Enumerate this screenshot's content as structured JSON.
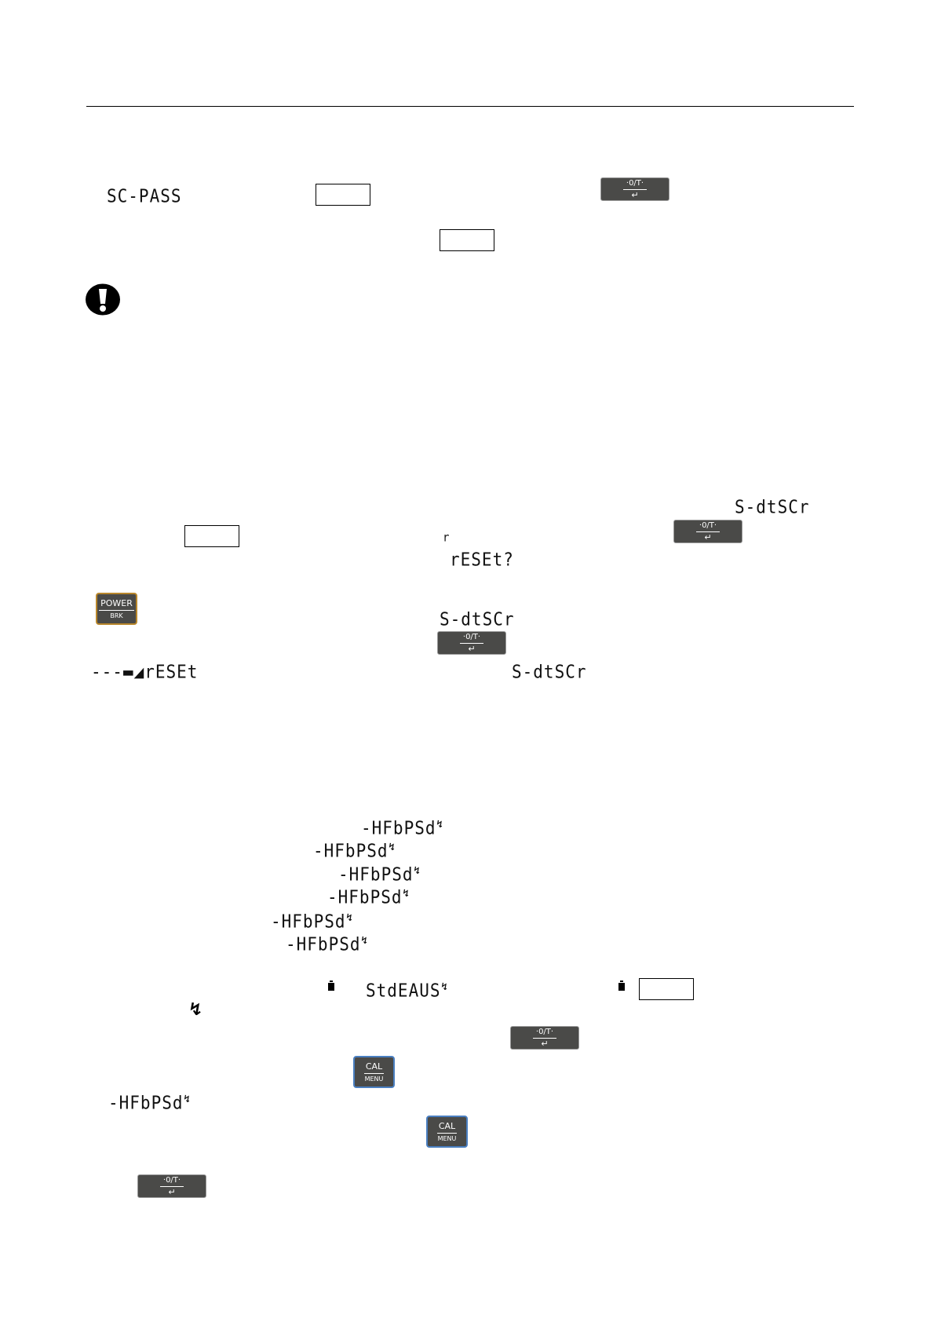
{
  "displays": {
    "sc_pass": "SC-PASS",
    "s_dtscr": "S-dtSCr",
    "r": "r",
    "reset_q": "rESEt?",
    "reset_seq": "---",
    "reset": "rESEt",
    "hfbpsd": "-HFbPSd",
    "stdeaus": "StdEAUS",
    "stable_mark": "↯"
  },
  "keys": {
    "zero_tare_top": "·0/T·",
    "zero_tare_bottom": "↵",
    "power_top": "POWER",
    "power_bottom": "BRK",
    "cal_top": "CAL",
    "cal_bottom": "MENU"
  },
  "icons": {
    "warning": "exclamation-icon",
    "weight": "weight-icon",
    "stable": "zigzag-arrow-icon"
  },
  "colors": {
    "key_bg": "#4a4a48",
    "power_border": "#b8862b",
    "cal_border": "#4a7fc1"
  }
}
